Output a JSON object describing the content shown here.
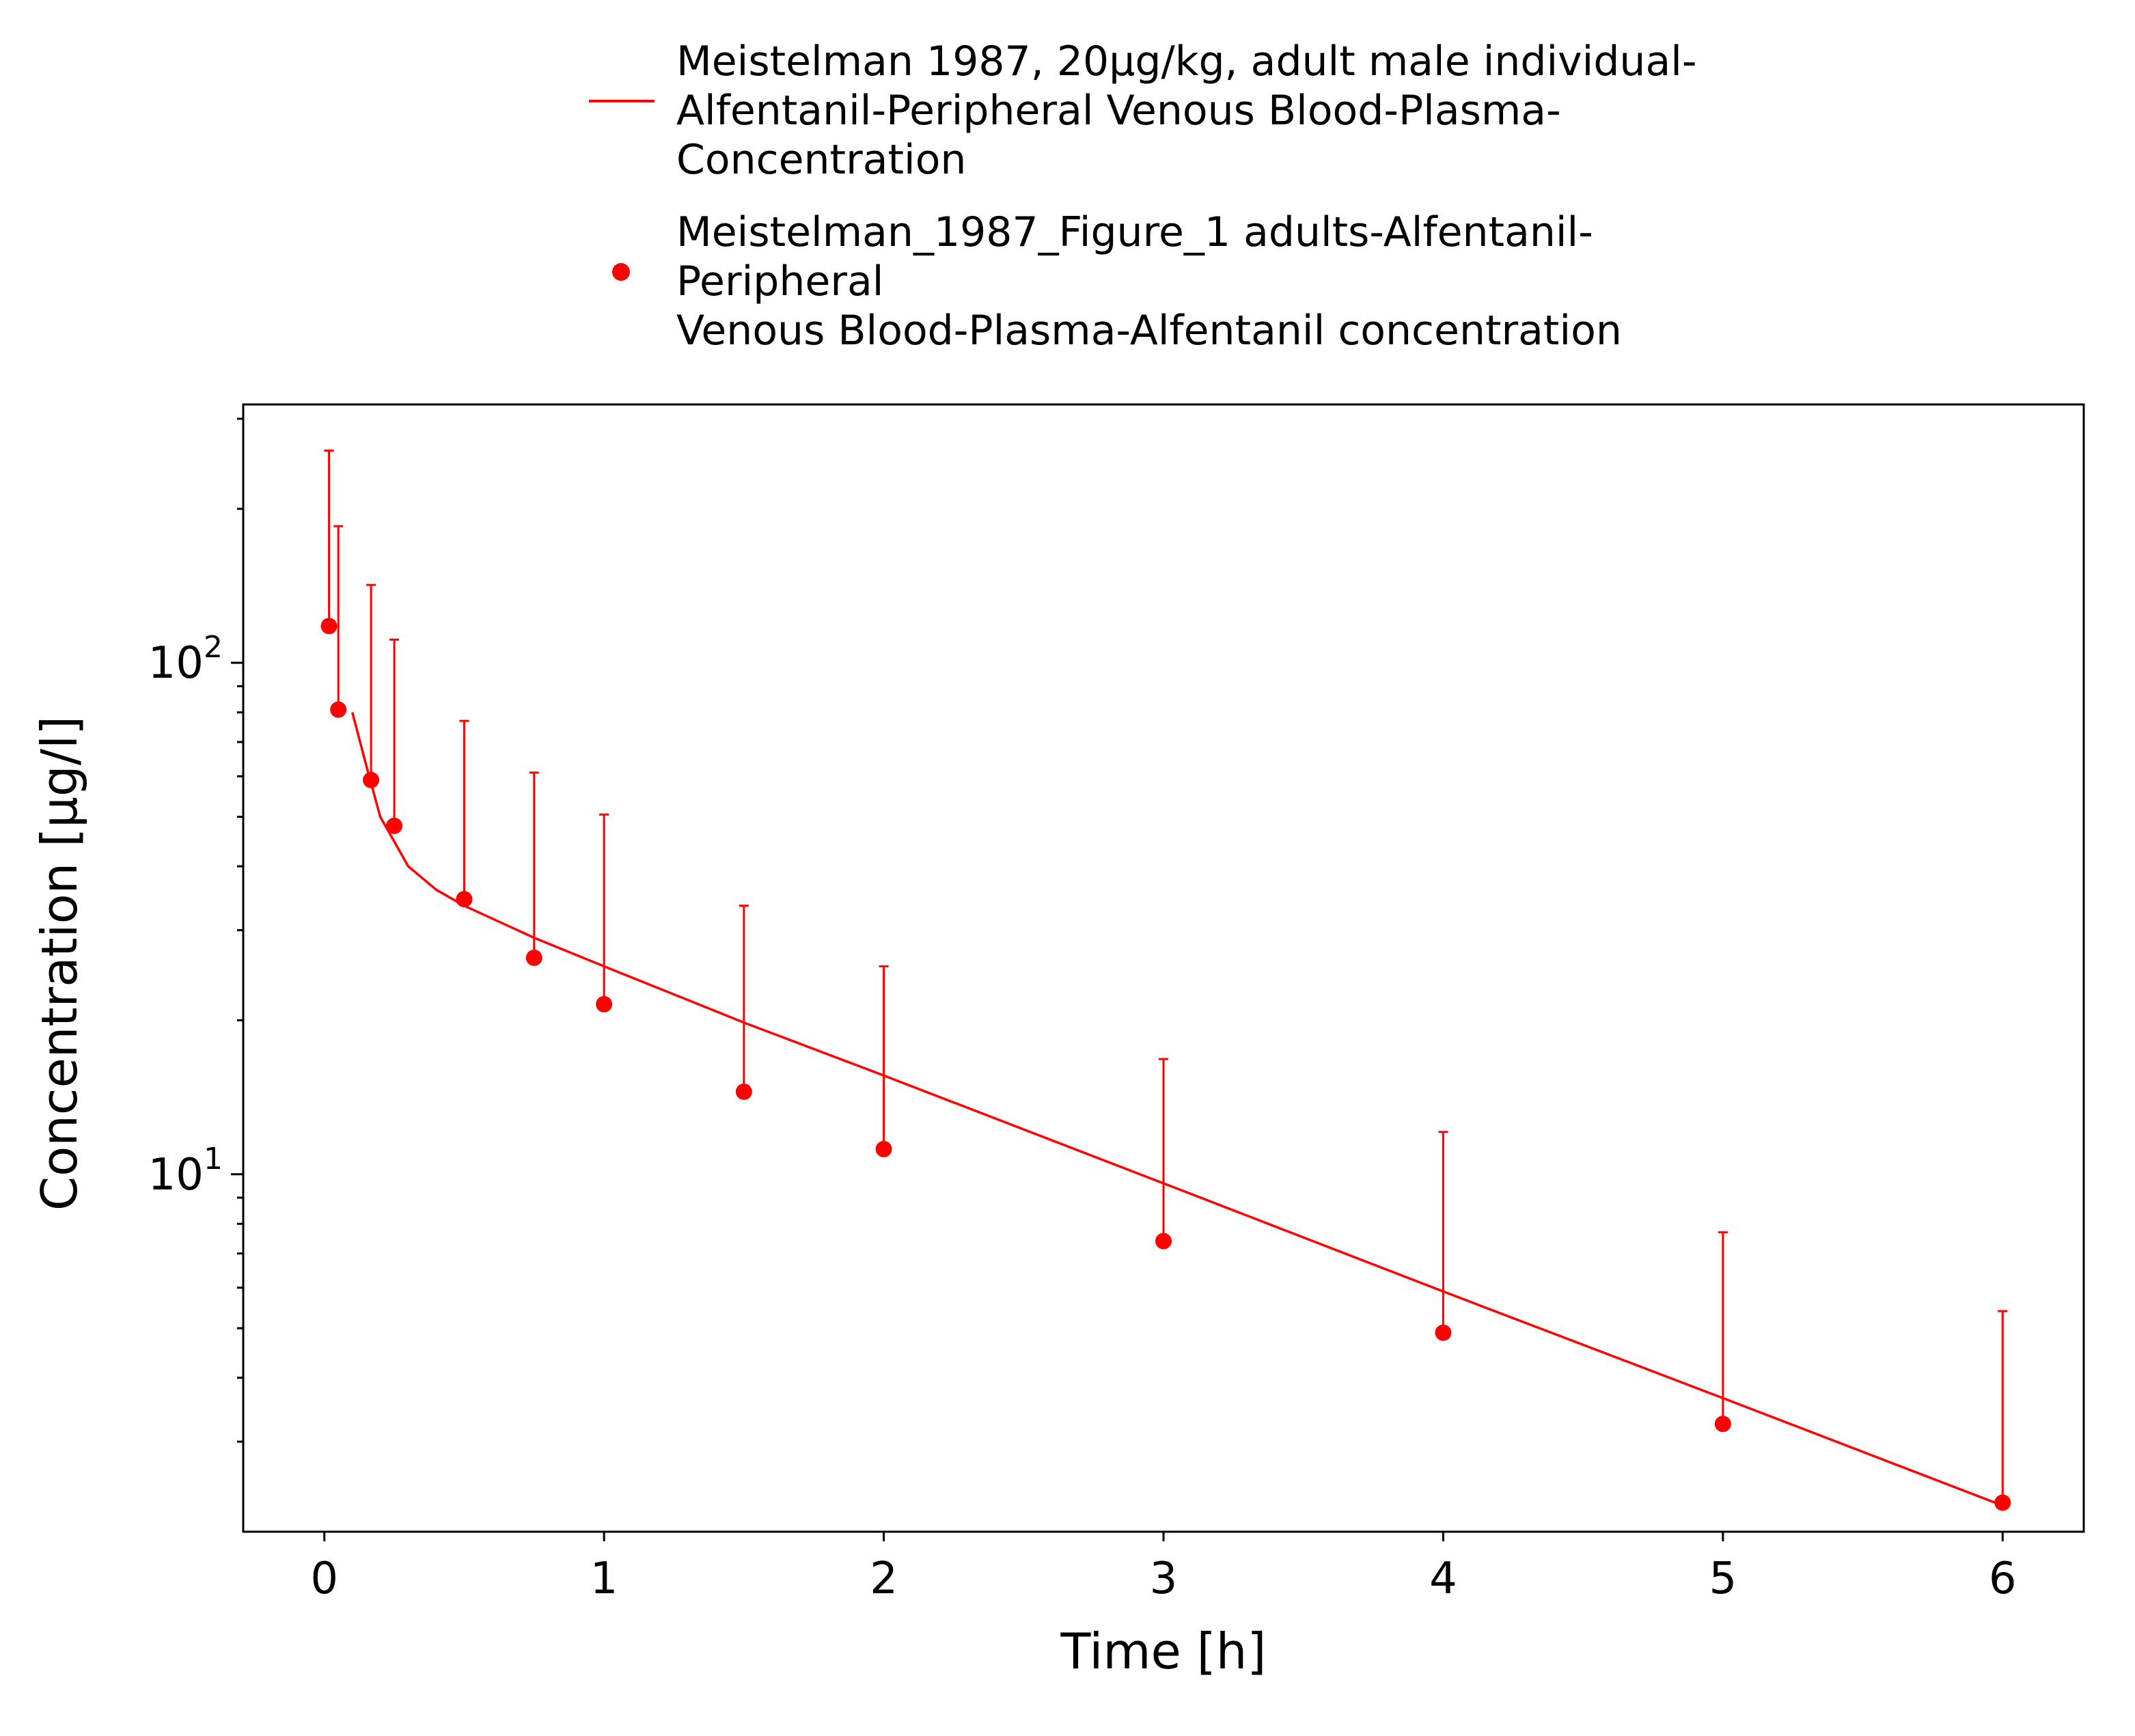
{
  "chart_data": {
    "type": "line",
    "yscale": "log",
    "title": "",
    "xlabel": "Time [h]",
    "ylabel": "Concentration [µg/l]",
    "xlim": [
      -0.29,
      6.29
    ],
    "ylim": [
      2.0,
      320
    ],
    "grid": false,
    "legend_position": "top-center",
    "xticks": [
      0,
      1,
      2,
      3,
      4,
      5,
      6
    ],
    "xtick_labels": [
      "0",
      "1",
      "2",
      "3",
      "4",
      "5",
      "6"
    ],
    "yticks_major": [
      {
        "value": 10,
        "base": "10",
        "exp": "1"
      },
      {
        "value": 100,
        "base": "10",
        "exp": "2"
      }
    ],
    "yticks_minor": [
      3,
      4,
      5,
      6,
      7,
      8,
      9,
      20,
      30,
      40,
      50,
      60,
      70,
      80,
      90,
      200,
      300
    ],
    "color": "#ff0000",
    "series": [
      {
        "name": "simulation",
        "kind": "line",
        "legend_lines": [
          "Meistelman 1987, 20µg/kg, adult male individual-",
          "Alfentanil-Peripheral Venous Blood-Plasma-",
          "Concentration"
        ],
        "x": [
          0.1,
          0.15,
          0.2,
          0.3,
          0.4,
          0.5,
          0.75,
          1.0,
          1.5,
          2.0,
          3.0,
          4.0,
          5.0,
          6.0
        ],
        "y": [
          80,
          63,
          50,
          40,
          36,
          33.5,
          29,
          25.5,
          19.8,
          15.6,
          9.6,
          5.9,
          3.65,
          2.25
        ]
      },
      {
        "name": "observed",
        "kind": "scatter_errorbar",
        "legend_lines": [
          "Meistelman_1987_Figure_1 adults-Alfentanil-",
          "Peripheral",
          "Venous Blood-Plasma-Alfentanil concentration"
        ],
        "x": [
          0.0167,
          0.05,
          0.167,
          0.25,
          0.5,
          0.75,
          1.0,
          1.5,
          2.0,
          3.0,
          4.0,
          5.0,
          6.0
        ],
        "y": [
          118,
          81,
          59,
          48,
          34.5,
          26.5,
          21.5,
          14.5,
          11.2,
          7.4,
          4.9,
          3.25,
          2.28
        ],
        "y_upper": [
          260,
          185,
          142,
          111,
          77,
          61,
          50.5,
          33.5,
          25.5,
          16.8,
          12.1,
          7.7,
          5.4
        ]
      }
    ]
  }
}
